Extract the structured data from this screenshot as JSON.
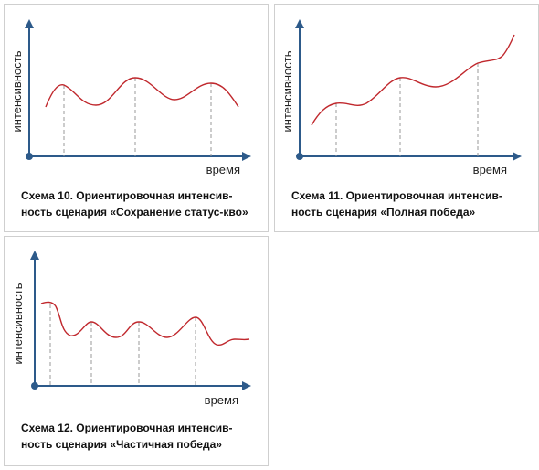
{
  "axis": {
    "y_label": "интенсивность",
    "x_label": "время"
  },
  "colors": {
    "axis": "#2d5a8a",
    "curve": "#c0282d",
    "dashed": "#9a9a9a"
  },
  "panels": [
    {
      "id": "p10",
      "caption_line1": "Схема 10. Ориентировочная интенсив-",
      "caption_line2": "ность сценария «Сохранение статус-кво»"
    },
    {
      "id": "p11",
      "caption_line1": "Схема 11. Ориентировочная интенсив-",
      "caption_line2": "ность сценария «Полная победа»"
    },
    {
      "id": "p12",
      "caption_line1": "Схема 12. Ориентировочная интенсив-",
      "caption_line2": "ность сценария «Частичная победа»"
    }
  ]
}
